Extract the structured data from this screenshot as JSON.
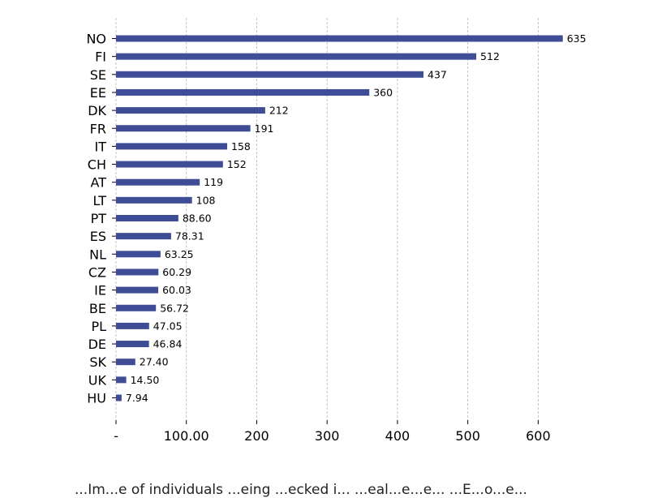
{
  "chart_data": {
    "type": "bar",
    "orientation": "horizontal",
    "categories": [
      "NO",
      "FI",
      "SE",
      "EE",
      "DK",
      "FR",
      "IT",
      "CH",
      "AT",
      "LT",
      "PT",
      "ES",
      "NL",
      "CZ",
      "IE",
      "BE",
      "PL",
      "DE",
      "SK",
      "UK",
      "HU"
    ],
    "values": [
      635,
      512,
      437,
      360,
      212,
      191,
      158,
      152,
      119,
      108,
      88.6,
      78.31,
      63.25,
      60.29,
      60.03,
      56.72,
      47.05,
      46.84,
      27.4,
      14.5,
      7.94
    ],
    "value_labels": [
      "635",
      "512",
      "437",
      "360",
      "212",
      "191",
      "158",
      "152",
      "119",
      "108",
      "88.60",
      "78.31",
      "63.25",
      "60.29",
      "60.03",
      "56.72",
      "47.05",
      "46.84",
      "27.40",
      "14.50",
      "7.94"
    ],
    "x_ticks": [
      0,
      100,
      200,
      300,
      400,
      500,
      600
    ],
    "x_tick_labels": [
      "-",
      "100.00",
      "200",
      "300",
      "400",
      "500",
      "600"
    ],
    "xlim": [
      0,
      635
    ],
    "bar_color": "#3f4d96",
    "grid_color": "#b5b5b5",
    "grid": "vertical-dashed",
    "title": "",
    "xlabel": "",
    "ylabel": ""
  },
  "caption": "...Im...e of individuals ...eing ...ecked i... ...eal...e...e... ...E...o...e..."
}
